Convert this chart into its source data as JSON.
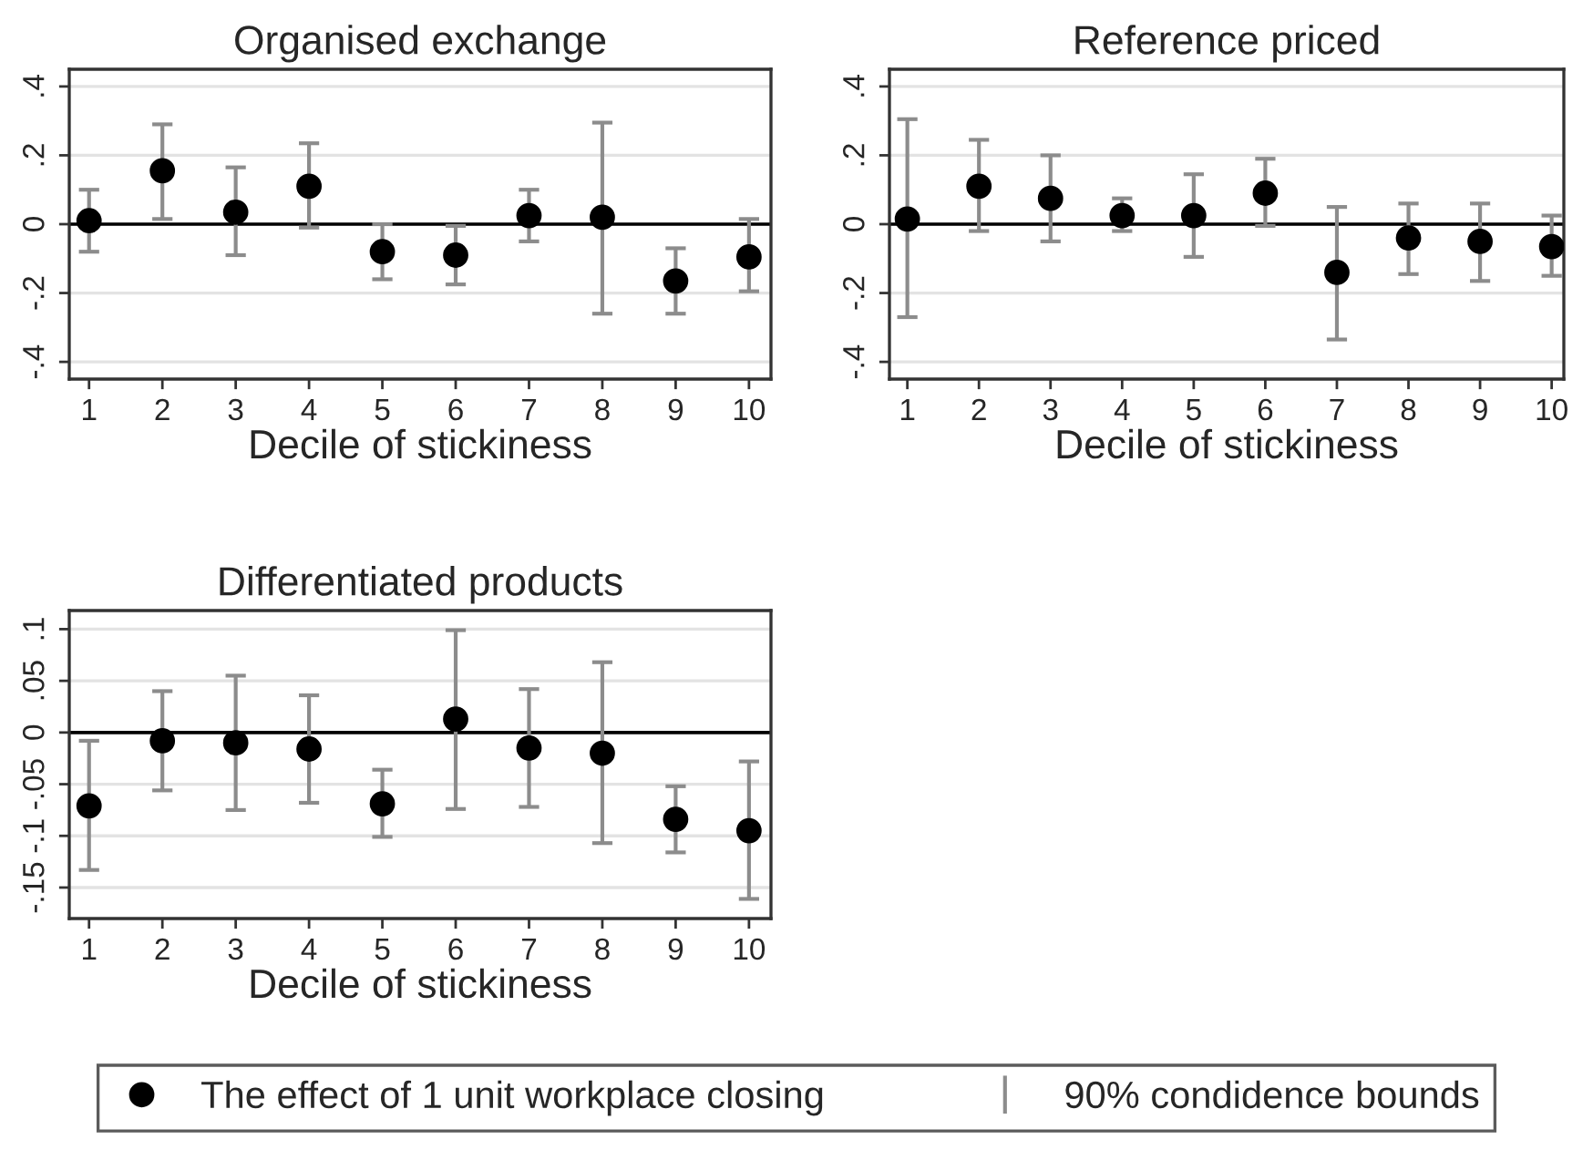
{
  "chart_data": [
    {
      "type": "scatter",
      "title": "Organised exchange",
      "xlabel": "Decile of stickiness",
      "x": [
        1,
        2,
        3,
        4,
        5,
        6,
        7,
        8,
        9,
        10
      ],
      "xlim": [
        0.73,
        10.3
      ],
      "xticks": [
        1,
        2,
        3,
        4,
        5,
        6,
        7,
        8,
        9,
        10
      ],
      "ylim": [
        -0.45,
        0.45
      ],
      "yticks": [
        {
          "value": -0.4,
          "label": "-.4"
        },
        {
          "value": -0.2,
          "label": "-.2"
        },
        0,
        {
          "value": 0.2,
          "label": ".2"
        },
        {
          "value": 0.4,
          "label": ".4"
        }
      ],
      "grid": "y",
      "marker": "circle",
      "legend": "bottom",
      "series": [
        {
          "name": "The effect of 1 unit workplace closing",
          "color": "#000000",
          "values": [
            0.01,
            0.155,
            0.035,
            0.11,
            -0.08,
            -0.09,
            0.025,
            0.02,
            -0.165,
            -0.095
          ],
          "errors": [
            [
              -0.08,
              0.1
            ],
            [
              0.015,
              0.29
            ],
            [
              -0.09,
              0.165
            ],
            [
              -0.01,
              0.235
            ],
            [
              -0.16,
              0.0
            ],
            [
              -0.175,
              -0.005
            ],
            [
              -0.05,
              0.1
            ],
            [
              -0.26,
              0.295
            ],
            [
              -0.26,
              -0.07
            ],
            [
              -0.195,
              0.015
            ]
          ]
        }
      ],
      "ref_lines": [
        {
          "axis": "y",
          "value": 0,
          "color": "#000000"
        }
      ],
      "annotations": [
        "90% condidence bounds"
      ]
    },
    {
      "type": "scatter",
      "title": "Reference priced",
      "xlabel": "Decile of stickiness",
      "x": [
        1,
        2,
        3,
        4,
        5,
        6,
        7,
        8,
        9,
        10
      ],
      "xlim": [
        0.75,
        10.17
      ],
      "xticks": [
        1,
        2,
        3,
        4,
        5,
        6,
        7,
        8,
        9,
        10
      ],
      "ylim": [
        -0.45,
        0.45
      ],
      "yticks": [
        {
          "value": -0.4,
          "label": "-.4"
        },
        {
          "value": -0.2,
          "label": "-.2"
        },
        0,
        {
          "value": 0.2,
          "label": ".2"
        },
        {
          "value": 0.4,
          "label": ".4"
        }
      ],
      "grid": "y",
      "marker": "circle",
      "series": [
        {
          "color": "#000000",
          "values": [
            0.015,
            0.11,
            0.075,
            0.025,
            0.025,
            0.09,
            -0.14,
            -0.04,
            -0.05,
            -0.065
          ],
          "errors": [
            [
              -0.27,
              0.305
            ],
            [
              -0.02,
              0.245
            ],
            [
              -0.05,
              0.2
            ],
            [
              -0.02,
              0.075
            ],
            [
              -0.095,
              0.145
            ],
            [
              -0.005,
              0.19
            ],
            [
              -0.335,
              0.05
            ],
            [
              -0.145,
              0.06
            ],
            [
              -0.165,
              0.06
            ],
            [
              -0.15,
              0.025
            ]
          ]
        }
      ],
      "ref_lines": [
        {
          "axis": "y",
          "value": 0,
          "color": "#000000"
        }
      ]
    },
    {
      "type": "scatter",
      "title": "Differentiated products",
      "xlabel": "Decile of stickiness",
      "x": [
        1,
        2,
        3,
        4,
        5,
        6,
        7,
        8,
        9,
        10
      ],
      "xlim": [
        0.73,
        10.3
      ],
      "xticks": [
        1,
        2,
        3,
        4,
        5,
        6,
        7,
        8,
        9,
        10
      ],
      "ylim": [
        -0.18,
        0.118
      ],
      "yticks": [
        {
          "value": -0.15,
          "label": "-.15"
        },
        {
          "value": -0.1,
          "label": "-.1"
        },
        {
          "value": -0.05,
          "label": "-.05"
        },
        0,
        {
          "value": 0.05,
          "label": ".05"
        },
        {
          "value": 0.1,
          "label": ".1"
        }
      ],
      "grid": "y",
      "marker": "circle",
      "series": [
        {
          "color": "#000000",
          "values": [
            -0.071,
            -0.008,
            -0.01,
            -0.016,
            -0.069,
            0.013,
            -0.015,
            -0.02,
            -0.084,
            -0.095
          ],
          "errors": [
            [
              -0.133,
              -0.008
            ],
            [
              -0.056,
              0.04
            ],
            [
              -0.075,
              0.055
            ],
            [
              -0.068,
              0.036
            ],
            [
              -0.101,
              -0.036
            ],
            [
              -0.074,
              0.099
            ],
            [
              -0.072,
              0.042
            ],
            [
              -0.107,
              0.068
            ],
            [
              -0.116,
              -0.052
            ],
            [
              -0.161,
              -0.028
            ]
          ]
        }
      ],
      "ref_lines": [
        {
          "axis": "y",
          "value": 0,
          "color": "#000000"
        }
      ]
    }
  ]
}
